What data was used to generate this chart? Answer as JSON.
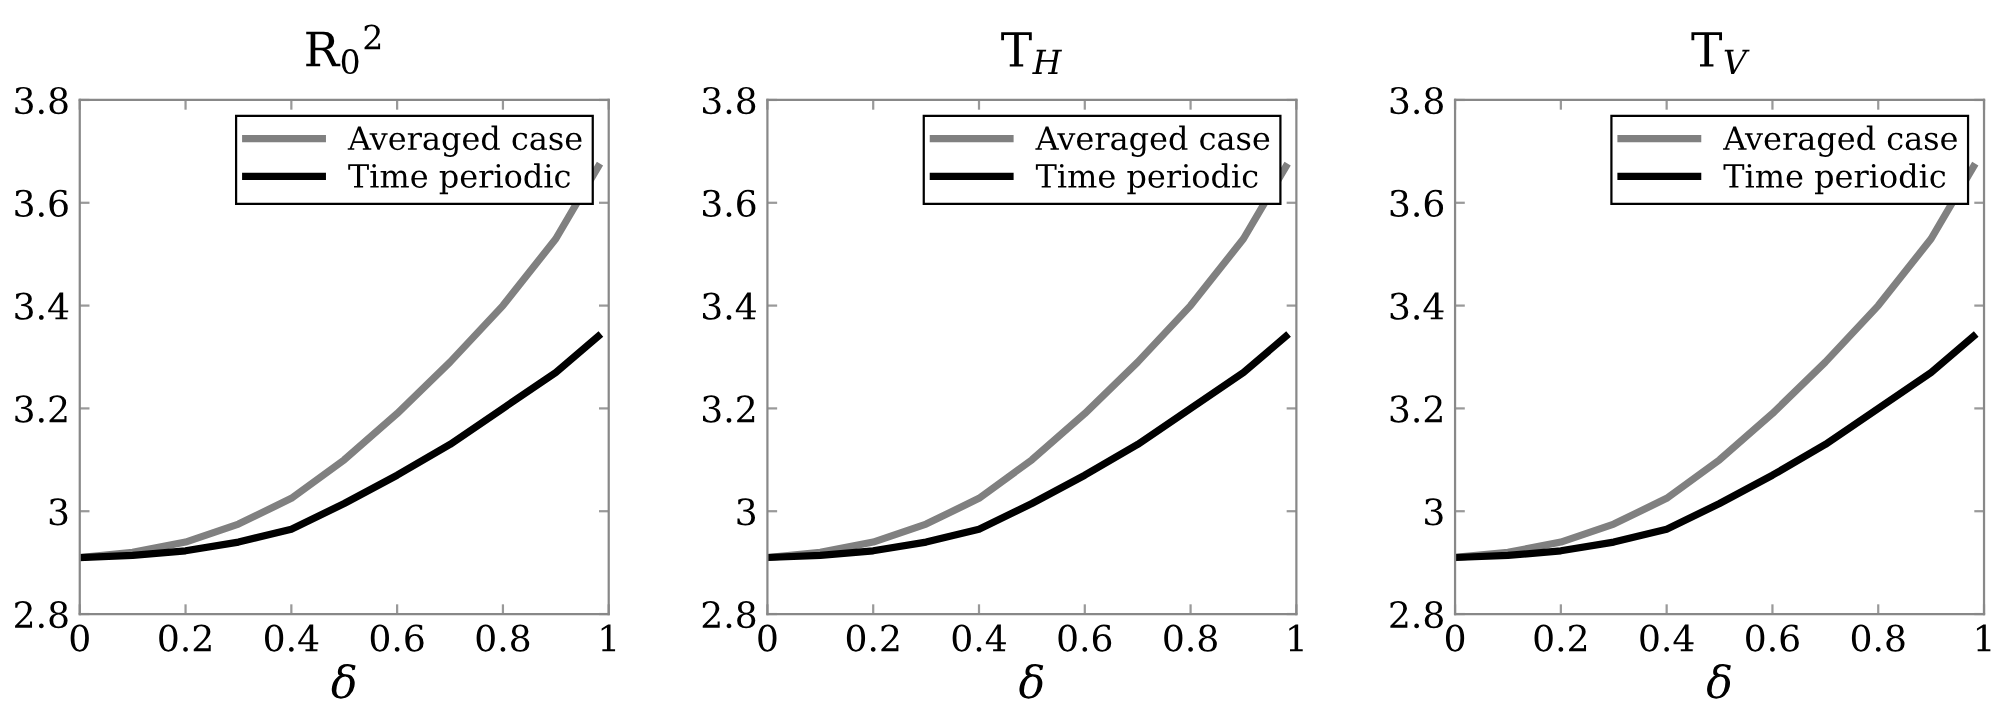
{
  "chart_data": [
    {
      "type": "line",
      "title": "R$_{0}$$^{2}$",
      "xlabel": "δ",
      "x": [
        0,
        0.1,
        0.2,
        0.3,
        0.4,
        0.5,
        0.6,
        0.7,
        0.8,
        0.9,
        0.98
      ],
      "xlim": [
        0,
        1
      ],
      "ylim": [
        2.8,
        3.8
      ],
      "xticks": [
        0,
        0.2,
        0.4,
        0.6,
        0.8,
        1
      ],
      "yticks": [
        2.8,
        3,
        3.2,
        3.4,
        3.6,
        3.8
      ],
      "legend": "top right",
      "series": [
        {
          "name": "Averaged case",
          "color": "#808080",
          "values": [
            2.91,
            2.92,
            2.94,
            2.975,
            3.025,
            3.1,
            3.19,
            3.29,
            3.4,
            3.53,
            3.67
          ]
        },
        {
          "name": "Time periodic",
          "color": "#000000",
          "values": [
            2.91,
            2.914,
            2.923,
            2.94,
            2.965,
            3.015,
            3.07,
            3.13,
            3.2,
            3.27,
            3.34
          ]
        }
      ]
    },
    {
      "type": "line",
      "title": "T$_{H}$",
      "xlabel": "δ",
      "x": [
        0,
        0.1,
        0.2,
        0.3,
        0.4,
        0.5,
        0.6,
        0.7,
        0.8,
        0.9,
        0.98
      ],
      "xlim": [
        0,
        1
      ],
      "ylim": [
        2.8,
        3.8
      ],
      "xticks": [
        0,
        0.2,
        0.4,
        0.6,
        0.8,
        1
      ],
      "yticks": [
        2.8,
        3,
        3.2,
        3.4,
        3.6,
        3.8
      ],
      "legend": "top right",
      "series": [
        {
          "name": "Averaged case",
          "color": "#808080",
          "values": [
            2.91,
            2.92,
            2.94,
            2.975,
            3.025,
            3.1,
            3.19,
            3.29,
            3.4,
            3.53,
            3.67
          ]
        },
        {
          "name": "Time periodic",
          "color": "#000000",
          "values": [
            2.91,
            2.914,
            2.923,
            2.94,
            2.965,
            3.015,
            3.07,
            3.13,
            3.2,
            3.27,
            3.34
          ]
        }
      ]
    },
    {
      "type": "line",
      "title": "T$_{V}$",
      "xlabel": "δ",
      "x": [
        0,
        0.1,
        0.2,
        0.3,
        0.4,
        0.5,
        0.6,
        0.7,
        0.8,
        0.9,
        0.98
      ],
      "xlim": [
        0,
        1
      ],
      "ylim": [
        2.8,
        3.8
      ],
      "xticks": [
        0,
        0.2,
        0.4,
        0.6,
        0.8,
        1
      ],
      "yticks": [
        2.8,
        3,
        3.2,
        3.4,
        3.6,
        3.8
      ],
      "legend": "top right",
      "series": [
        {
          "name": "Averaged case",
          "color": "#808080",
          "values": [
            2.91,
            2.92,
            2.94,
            2.975,
            3.025,
            3.1,
            3.19,
            3.29,
            3.4,
            3.53,
            3.67
          ]
        },
        {
          "name": "Time periodic",
          "color": "#000000",
          "values": [
            2.91,
            2.914,
            2.923,
            2.94,
            2.965,
            3.015,
            3.07,
            3.13,
            3.2,
            3.27,
            3.34
          ]
        }
      ]
    }
  ]
}
